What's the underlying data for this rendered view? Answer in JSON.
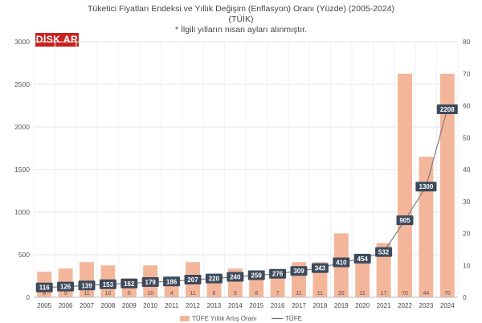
{
  "header": {
    "title_line1": "Tüketici Fiyatları Endeksi ve Yıllık Değişim (Enflasyon) Oranı (Yüzde) (2005-2024)",
    "title_line2": "(TÜİK)",
    "note": "* İlgili yılların nisan ayları alınmıştır."
  },
  "logo": {
    "text": "DİSK AR"
  },
  "colors": {
    "bar": "#f4b69a",
    "line": "#888888",
    "label_bg": "#3d4a5c",
    "grid": "#e6e6e6"
  },
  "chart_data": {
    "type": "bar",
    "categories": [
      "2005",
      "2006",
      "2007",
      "2008",
      "2009",
      "2010",
      "2011",
      "2012",
      "2013",
      "2014",
      "2015",
      "2016",
      "2017",
      "2018",
      "2019",
      "2020",
      "2021",
      "2022",
      "2023",
      "2024"
    ],
    "series": [
      {
        "name": "TÜFE Yıllık Artış Oranı",
        "type": "bar",
        "axis": "right",
        "values": [
          8,
          9,
          11,
          10,
          6,
          10,
          4,
          11,
          6,
          9,
          8,
          7,
          11,
          11,
          20,
          11,
          17,
          70,
          44,
          70
        ]
      },
      {
        "name": "TÜFE",
        "type": "line",
        "axis": "left",
        "values": [
          116,
          126,
          139,
          153,
          162,
          179,
          186,
          207,
          220,
          240,
          259,
          276,
          309,
          343,
          410,
          454,
          532,
          905,
          1300,
          2208
        ]
      }
    ],
    "left_axis": {
      "ylim": [
        0,
        3000
      ],
      "ticks": [
        "0",
        "500",
        "1000",
        "1500",
        "2000",
        "2500",
        "3000"
      ]
    },
    "right_axis": {
      "ylim": [
        0,
        80
      ],
      "ticks": [
        "0",
        "10",
        "20",
        "30",
        "40",
        "50",
        "60",
        "70",
        "80"
      ]
    },
    "grid": true,
    "legend_position": "bottom"
  }
}
